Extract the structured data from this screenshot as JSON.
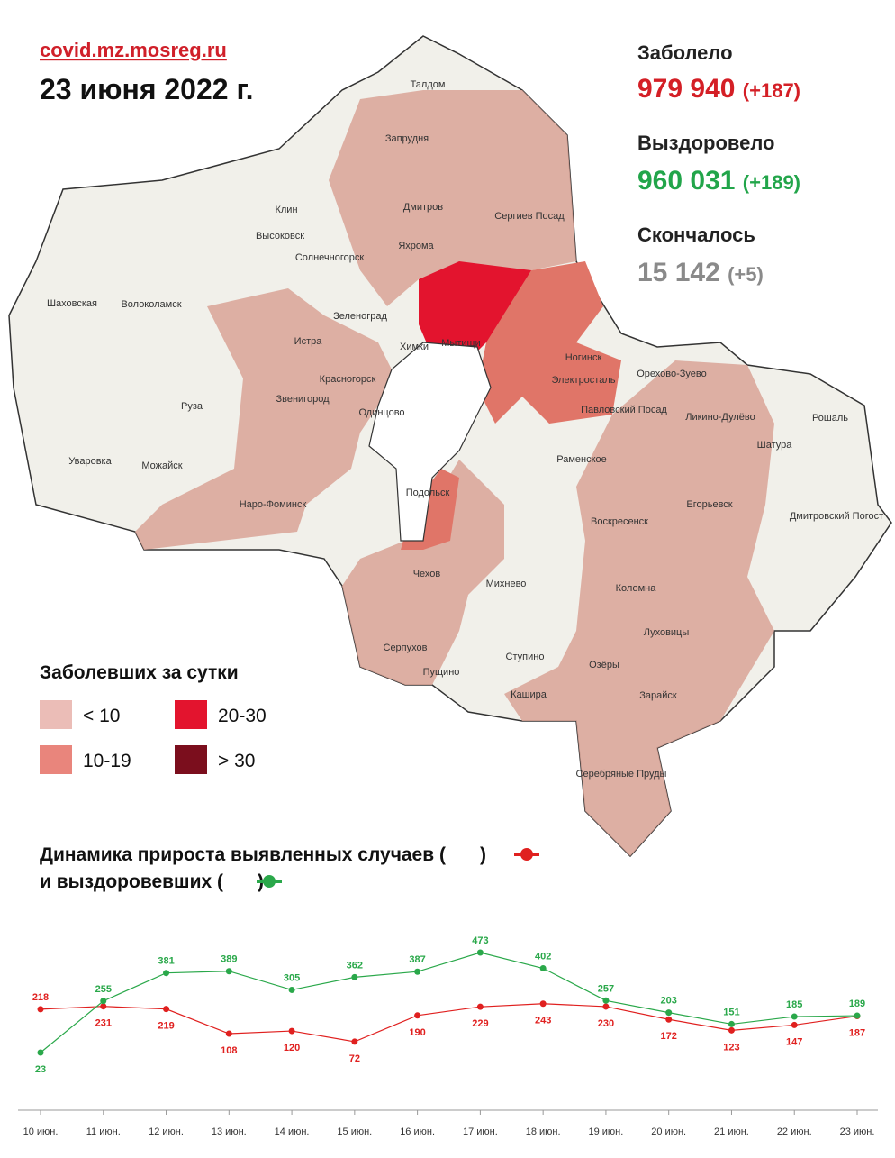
{
  "header": {
    "site": "covid.mz.mosreg.ru",
    "date": "23 июня 2022 г."
  },
  "stats": [
    {
      "label": "Заболело",
      "value": "979 940",
      "delta": "(+187)"
    },
    {
      "label": "Выздоровело",
      "value": "960 031",
      "delta": "(+189)"
    },
    {
      "label": "Скончалось",
      "value": "15 142",
      "delta": "(+5)"
    }
  ],
  "map": {
    "labels": [
      "Талдом",
      "Запрудня",
      "Клин",
      "Дмитров",
      "Сергиев Посад",
      "Высоковск",
      "Яхрома",
      "Солнечногорск",
      "Шаховская",
      "Волоколамск",
      "Зеленоград",
      "Истра",
      "Химки",
      "Мытищи",
      "Ногинск",
      "Красногорск",
      "Электросталь",
      "Орехово-Зуево",
      "Звенигород",
      "Одинцово",
      "Павловский Посад",
      "Ликино-Дулёво",
      "Руза",
      "Рошаль",
      "Шатура",
      "Раменское",
      "Уваровка",
      "Можайск",
      "Наро-Фоминск",
      "Подольск",
      "Егорьевск",
      "Воскресенск",
      "Дмитровский Погост",
      "Чехов",
      "Михнево",
      "Коломна",
      "Луховицы",
      "Серпухов",
      "Ступино",
      "Пущино",
      "Озёры",
      "Зарайск",
      "Кашира",
      "Серебряные Пруды"
    ]
  },
  "legend": {
    "title": "Заболевших за сутки",
    "items": [
      {
        "label": "< 10",
        "color": "#ebbdb7"
      },
      {
        "label": "20-30",
        "color": "#e3142e"
      },
      {
        "label": "10-19",
        "color": "#e9857c"
      },
      {
        "label": "> 30",
        "color": "#7b0e1d"
      }
    ]
  },
  "chart_data": {
    "type": "line",
    "title_parts": [
      "Динамика прироста выявленных случаев (",
      ")",
      "и выздоровевших (",
      ")"
    ],
    "categories": [
      "10 июн.",
      "11 июн.",
      "12 июн.",
      "13 июн.",
      "14 июн.",
      "15 июн.",
      "16 июн.",
      "17 июн.",
      "18 июн.",
      "19 июн.",
      "20 июн.",
      "21 июн.",
      "22 июн.",
      "23 июн."
    ],
    "series": [
      {
        "color": "#e0201f",
        "values": [
          218,
          231,
          219,
          108,
          120,
          72,
          190,
          229,
          243,
          230,
          172,
          123,
          147,
          187
        ]
      },
      {
        "color": "#2aa84a",
        "values": [
          23,
          255,
          381,
          389,
          305,
          362,
          387,
          473,
          402,
          257,
          203,
          151,
          185,
          189
        ]
      }
    ]
  }
}
